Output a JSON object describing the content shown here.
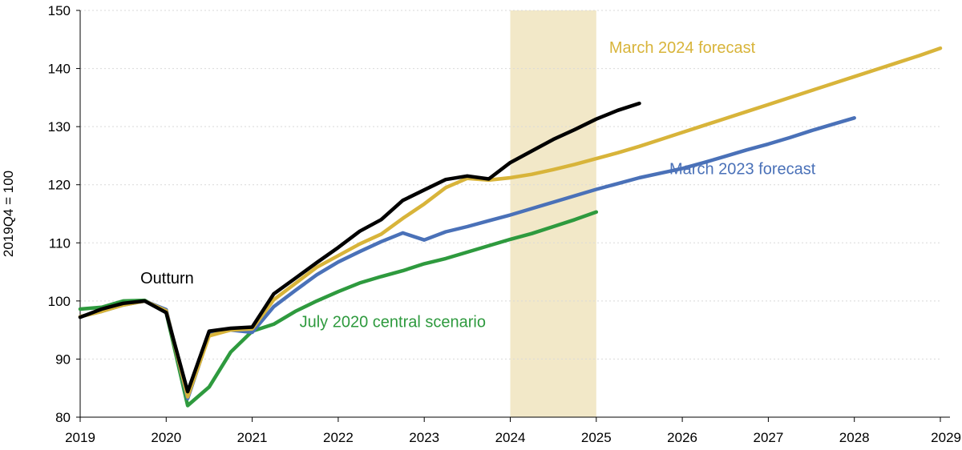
{
  "chart_data": {
    "type": "line",
    "title": "",
    "xlabel": "",
    "ylabel": "2019Q4 = 100",
    "xlim": [
      2019.0,
      2029.0
    ],
    "ylim": [
      80,
      150
    ],
    "y_ticks": [
      80,
      90,
      100,
      110,
      120,
      130,
      140,
      150
    ],
    "x_ticks": [
      2019,
      2020,
      2021,
      2022,
      2023,
      2024,
      2025,
      2026,
      2027,
      2028,
      2029
    ],
    "x_tick_labels": [
      "2019",
      "2020",
      "2021",
      "2022",
      "2023",
      "2024",
      "2025",
      "2026",
      "2027",
      "2028",
      "2029"
    ],
    "grid": "horizontal dotted",
    "shaded_region": {
      "x_start": 2024.0,
      "x_end": 2025.0,
      "color": "#F2E8C8"
    },
    "series": [
      {
        "name": "July 2020 central scenario",
        "color": "#2E9A3E",
        "x": [
          2019.0,
          2019.25,
          2019.5,
          2019.75,
          2020.0,
          2020.25,
          2020.5,
          2020.75,
          2021.0,
          2021.25,
          2021.5,
          2021.75,
          2022.0,
          2022.25,
          2022.5,
          2022.75,
          2023.0,
          2023.25,
          2023.5,
          2023.75,
          2024.0,
          2024.25,
          2024.5,
          2024.75,
          2025.0
        ],
        "y": [
          98.6,
          98.9,
          100.0,
          100.1,
          98.0,
          82.0,
          85.2,
          91.2,
          94.8,
          96.0,
          98.2,
          100.0,
          101.6,
          103.1,
          104.2,
          105.2,
          106.4,
          107.3,
          108.4,
          109.5,
          110.6,
          111.6,
          112.8,
          114.0,
          115.3
        ]
      },
      {
        "name": "March 2023 forecast",
        "color": "#4A71B8",
        "x": [
          2019.0,
          2019.25,
          2019.5,
          2019.75,
          2020.0,
          2020.25,
          2020.5,
          2020.75,
          2021.0,
          2021.25,
          2021.5,
          2021.75,
          2022.0,
          2022.25,
          2022.5,
          2022.75,
          2023.0,
          2023.25,
          2023.5,
          2023.75,
          2024.0,
          2024.25,
          2024.5,
          2024.75,
          2025.0,
          2025.25,
          2025.5,
          2025.75,
          2026.0,
          2026.25,
          2026.5,
          2026.75,
          2027.0,
          2027.25,
          2027.5,
          2027.75,
          2028.0
        ],
        "y": [
          97.3,
          98.2,
          99.3,
          100.0,
          98.5,
          83.2,
          94.2,
          95.0,
          94.6,
          99.0,
          101.8,
          104.5,
          106.7,
          108.5,
          110.2,
          111.7,
          110.5,
          111.9,
          112.8,
          113.8,
          114.8,
          115.9,
          117.0,
          118.1,
          119.2,
          120.2,
          121.2,
          122.0,
          122.8,
          123.8,
          124.9,
          126.0,
          127.0,
          128.1,
          129.3,
          130.4,
          131.5
        ]
      },
      {
        "name": "March 2024 forecast",
        "color": "#D8B43A",
        "x": [
          2019.0,
          2019.25,
          2019.5,
          2019.75,
          2020.0,
          2020.25,
          2020.5,
          2020.75,
          2021.0,
          2021.25,
          2021.5,
          2021.75,
          2022.0,
          2022.25,
          2022.5,
          2022.75,
          2023.0,
          2023.25,
          2023.5,
          2023.75,
          2024.0,
          2024.25,
          2024.5,
          2024.75,
          2025.0,
          2025.25,
          2025.5,
          2025.75,
          2026.0,
          2026.25,
          2026.5,
          2026.75,
          2027.0,
          2027.25,
          2027.5,
          2027.75,
          2028.0,
          2028.25,
          2028.5,
          2028.75,
          2029.0
        ],
        "y": [
          97.3,
          98.2,
          99.3,
          100.0,
          98.3,
          83.5,
          94.0,
          95.0,
          95.2,
          100.2,
          103.0,
          105.8,
          107.8,
          109.8,
          111.5,
          114.2,
          116.7,
          119.5,
          121.1,
          120.8,
          121.2,
          121.8,
          122.6,
          123.5,
          124.5,
          125.5,
          126.6,
          127.8,
          129.0,
          130.2,
          131.4,
          132.6,
          133.8,
          135.0,
          136.2,
          137.4,
          138.6,
          139.8,
          141.0,
          142.2,
          143.5
        ]
      },
      {
        "name": "Outturn",
        "color": "#000000",
        "x": [
          2019.0,
          2019.25,
          2019.5,
          2019.75,
          2020.0,
          2020.25,
          2020.5,
          2020.75,
          2021.0,
          2021.25,
          2021.5,
          2021.75,
          2022.0,
          2022.25,
          2022.5,
          2022.75,
          2023.0,
          2023.25,
          2023.5,
          2023.75,
          2024.0,
          2024.25,
          2024.5,
          2024.75,
          2025.0,
          2025.25,
          2025.5
        ],
        "y": [
          97.2,
          98.6,
          99.6,
          100.0,
          98.0,
          84.4,
          94.8,
          95.3,
          95.5,
          101.2,
          103.9,
          106.6,
          109.2,
          112.0,
          114.0,
          117.3,
          119.1,
          120.9,
          121.5,
          121.0,
          123.8,
          125.8,
          127.8,
          129.5,
          131.3,
          132.8,
          134.0
        ]
      }
    ],
    "annotations": [
      {
        "text": "Outturn",
        "series": "Outturn",
        "color": "#000000",
        "x": 2019.7,
        "y": 103.0
      },
      {
        "text": "July 2020 central scenario",
        "series": "July 2020 central scenario",
        "color": "#2E9A3E",
        "x": 2021.55,
        "y": 95.5
      },
      {
        "text": "March 2023 forecast",
        "series": "March 2023 forecast",
        "color": "#4A71B8",
        "x": 2025.85,
        "y": 121.8
      },
      {
        "text": "March 2024 forecast",
        "series": "March 2024 forecast",
        "color": "#D8B43A",
        "x": 2025.15,
        "y": 142.7
      }
    ]
  }
}
